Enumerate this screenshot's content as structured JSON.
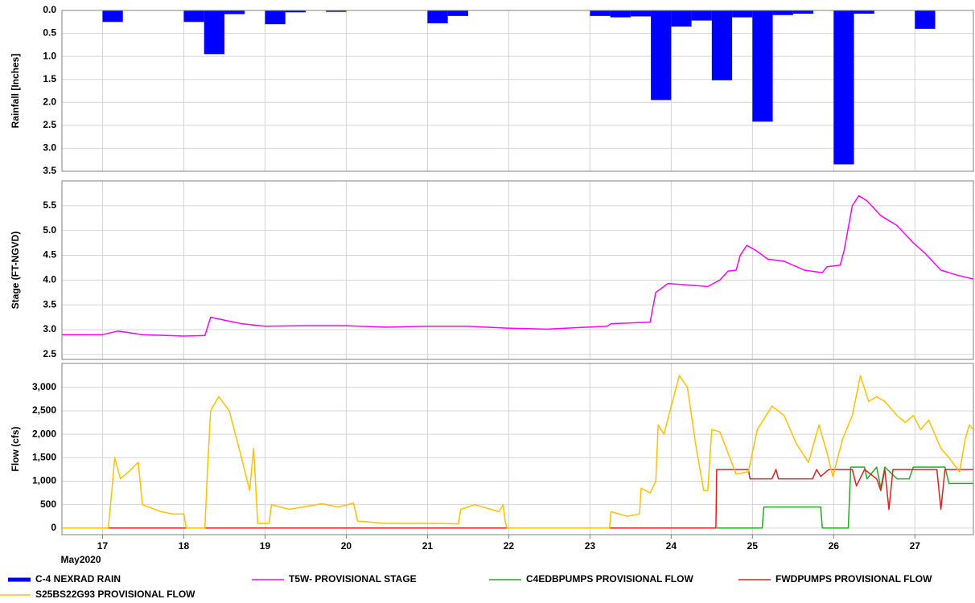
{
  "chart_data": [
    {
      "type": "bar",
      "ylabel": "Rainfall [Inches]",
      "y_inverted": true,
      "grid": true,
      "xlim": [
        16.5,
        27.72
      ],
      "xticks": [
        17,
        18,
        19,
        20,
        21,
        22,
        23,
        24,
        25,
        26,
        27
      ],
      "ylim": [
        0,
        3.5
      ],
      "yticks": [
        {
          "value": 0,
          "label": "0.0"
        },
        0.5,
        {
          "value": 1,
          "label": "1.0"
        },
        1.5,
        {
          "value": 2,
          "label": "2.0"
        },
        2.5,
        {
          "value": 3,
          "label": "3.0"
        },
        3.5
      ],
      "series": [
        {
          "name": "C-4 NEXRAD RAIN",
          "color": "#0000ff",
          "x": [
            17.125,
            18.125,
            18.375,
            18.625,
            19.125,
            19.375,
            19.875,
            21.125,
            21.375,
            23.125,
            23.375,
            23.625,
            23.875,
            24.125,
            24.375,
            24.625,
            24.875,
            25.125,
            25.375,
            25.625,
            26.125,
            26.375,
            27.125
          ],
          "values": [
            0.25,
            0.25,
            0.95,
            0.08,
            0.3,
            0.04,
            0.03,
            0.28,
            0.12,
            0.12,
            0.15,
            0.13,
            1.95,
            0.35,
            0.22,
            1.52,
            0.15,
            2.42,
            0.1,
            0.07,
            3.35,
            0.07,
            0.4
          ]
        }
      ]
    },
    {
      "type": "line",
      "ylabel": "Stage (FT-NGVD)",
      "grid": true,
      "xlim": [
        16.5,
        27.72
      ],
      "xticks": [
        17,
        18,
        19,
        20,
        21,
        22,
        23,
        24,
        25,
        26,
        27
      ],
      "ylim": [
        2.4,
        6.0
      ],
      "yticks": [
        2.5,
        {
          "value": 3,
          "label": "3.0"
        },
        3.5,
        {
          "value": 4,
          "label": "4.0"
        },
        4.5,
        {
          "value": 5,
          "label": "5.0"
        },
        5.5
      ],
      "series": [
        {
          "name": "T5W- PROVISIONAL STAGE",
          "color": "#ff00ff",
          "x": [
            16.5,
            17.0,
            17.19,
            17.49,
            18.0,
            18.26,
            18.33,
            18.71,
            19.0,
            19.5,
            19.99,
            20.49,
            20.99,
            21.48,
            21.98,
            22.47,
            22.97,
            23.21,
            23.26,
            23.74,
            23.81,
            23.96,
            24.45,
            24.6,
            24.7,
            24.8,
            24.85,
            24.93,
            25.04,
            25.19,
            25.39,
            25.64,
            25.86,
            25.92,
            26.08,
            26.13,
            26.23,
            26.31,
            26.41,
            26.58,
            26.78,
            26.98,
            27.12,
            27.32,
            27.52,
            27.72
          ],
          "values": [
            2.9,
            2.9,
            2.97,
            2.9,
            2.87,
            2.88,
            3.25,
            3.12,
            3.07,
            3.08,
            3.08,
            3.05,
            3.07,
            3.07,
            3.03,
            3.01,
            3.05,
            3.07,
            3.12,
            3.15,
            3.75,
            3.93,
            3.87,
            4.0,
            4.18,
            4.2,
            4.5,
            4.7,
            4.6,
            4.42,
            4.38,
            4.2,
            4.15,
            4.27,
            4.3,
            4.6,
            5.5,
            5.7,
            5.6,
            5.3,
            5.1,
            4.75,
            4.55,
            4.2,
            4.1,
            4.02
          ]
        }
      ]
    },
    {
      "type": "line",
      "ylabel": "Flow (cfs)",
      "xlabel": "May2020",
      "grid": true,
      "xlim": [
        16.5,
        27.72
      ],
      "xticks": [
        17,
        18,
        19,
        20,
        21,
        22,
        23,
        24,
        25,
        26,
        27
      ],
      "ylim": [
        -140,
        3510
      ],
      "yticks": [
        0,
        500,
        {
          "value": 1000,
          "label": "1,000"
        },
        {
          "value": 1500,
          "label": "1,500"
        },
        {
          "value": 2000,
          "label": "2,000"
        },
        {
          "value": 2500,
          "label": "2,500"
        },
        {
          "value": 3000,
          "label": "3,000"
        }
      ],
      "series": [
        {
          "name": "C4EDBPUMPS PROVISIONAL FLOW",
          "color": "#22aa22",
          "x": [
            24.56,
            25.12,
            25.14,
            25.84,
            25.86,
            26.18,
            26.21,
            26.38,
            26.41,
            26.53,
            26.58,
            26.63,
            26.78,
            26.93,
            26.98,
            27.37,
            27.42,
            27.72
          ],
          "values": [
            0,
            0,
            450,
            450,
            0,
            0,
            1300,
            1300,
            1050,
            1300,
            850,
            1300,
            1050,
            1050,
            1300,
            1300,
            950,
            950
          ]
        },
        {
          "name": "FWDPUMPS PROVISIONAL FLOW",
          "color": "#e02020",
          "x": [
            16.5,
            24.55,
            24.56,
            24.95,
            24.97,
            25.24,
            25.29,
            25.32,
            25.74,
            25.79,
            25.84,
            25.94,
            26.23,
            26.28,
            26.38,
            26.53,
            26.58,
            26.63,
            26.68,
            26.73,
            27.27,
            27.32,
            27.37,
            27.72
          ],
          "values": [
            0,
            0,
            1250,
            1250,
            1050,
            1050,
            1250,
            1050,
            1050,
            1250,
            1100,
            1250,
            1250,
            900,
            1250,
            1050,
            800,
            1250,
            400,
            1250,
            1250,
            400,
            1250,
            1250
          ]
        },
        {
          "name": "S25BS22G93 PROVISIONAL FLOW",
          "color": "#ffc000",
          "x": [
            16.5,
            17.07,
            17.12,
            17.15,
            17.22,
            17.32,
            17.44,
            17.49,
            17.72,
            17.87,
            18.0,
            18.03,
            18.26,
            18.29,
            18.33,
            18.43,
            18.56,
            18.71,
            18.81,
            18.86,
            18.91,
            19.05,
            19.08,
            19.3,
            19.7,
            19.9,
            20.09,
            20.14,
            20.49,
            21.08,
            21.38,
            21.41,
            21.58,
            21.88,
            21.93,
            21.96,
            21.98,
            23.24,
            23.26,
            23.46,
            23.61,
            23.63,
            23.74,
            23.81,
            23.84,
            23.91,
            24.0,
            24.1,
            24.2,
            24.3,
            24.4,
            24.45,
            24.5,
            24.6,
            24.7,
            24.8,
            24.95,
            25.06,
            25.24,
            25.39,
            25.54,
            25.69,
            25.82,
            25.92,
            25.99,
            26.11,
            26.23,
            26.33,
            26.43,
            26.53,
            26.63,
            26.78,
            26.88,
            26.98,
            27.07,
            27.17,
            27.32,
            27.42,
            27.55,
            27.62,
            27.67,
            27.72
          ],
          "values": [
            0,
            0,
            900,
            1500,
            1050,
            1200,
            1400,
            500,
            350,
            300,
            300,
            0,
            0,
            1200,
            2500,
            2800,
            2500,
            1500,
            800,
            1700,
            100,
            100,
            500,
            400,
            520,
            450,
            530,
            150,
            100,
            100,
            90,
            400,
            500,
            350,
            500,
            100,
            0,
            0,
            350,
            250,
            300,
            850,
            750,
            1000,
            2200,
            2000,
            2600,
            3250,
            3000,
            1800,
            800,
            800,
            2100,
            2050,
            1600,
            1150,
            1200,
            2100,
            2600,
            2400,
            1800,
            1400,
            2200,
            1600,
            1100,
            1900,
            2400,
            3250,
            2700,
            2800,
            2700,
            2400,
            2250,
            2400,
            2100,
            2300,
            1700,
            1500,
            1200,
            1900,
            2200,
            2100
          ]
        }
      ]
    }
  ]
}
